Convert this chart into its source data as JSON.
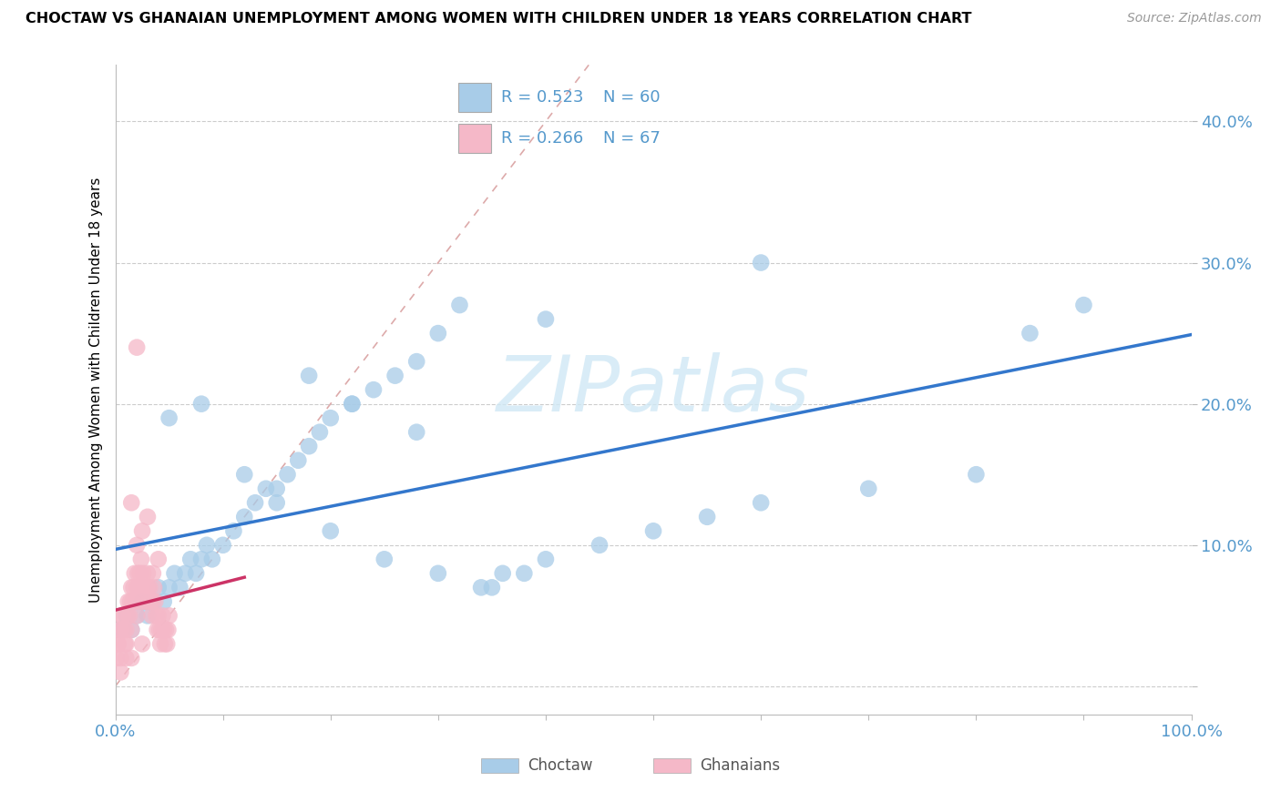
{
  "title": "CHOCTAW VS GHANAIAN UNEMPLOYMENT AMONG WOMEN WITH CHILDREN UNDER 18 YEARS CORRELATION CHART",
  "source": "Source: ZipAtlas.com",
  "ylabel": "Unemployment Among Women with Children Under 18 years",
  "xlim": [
    0,
    1.0
  ],
  "ylim": [
    -0.02,
    0.44
  ],
  "xticks": [
    0.0,
    0.1,
    0.2,
    0.3,
    0.4,
    0.5,
    0.6,
    0.7,
    0.8,
    0.9,
    1.0
  ],
  "yticks": [
    0.0,
    0.1,
    0.2,
    0.3,
    0.4
  ],
  "ytick_labels": [
    "",
    "10.0%",
    "20.0%",
    "30.0%",
    "40.0%"
  ],
  "xtick_labels": [
    "0.0%",
    "",
    "",
    "",
    "",
    "",
    "",
    "",
    "",
    "",
    "100.0%"
  ],
  "legend_blue_r": "0.523",
  "legend_blue_n": "60",
  "legend_pink_r": "0.266",
  "legend_pink_n": "67",
  "blue_color": "#a8cce8",
  "pink_color": "#f5b8c8",
  "blue_line_color": "#3377cc",
  "pink_line_color": "#cc3366",
  "ref_line_color": "#ddaaaa",
  "tick_color": "#5599cc",
  "watermark_color": "#d0e8f5",
  "background_color": "#ffffff",
  "choctaw_x": [
    0.005,
    0.01,
    0.015,
    0.02,
    0.025,
    0.03,
    0.035,
    0.04,
    0.045,
    0.05,
    0.055,
    0.06,
    0.065,
    0.07,
    0.075,
    0.08,
    0.085,
    0.09,
    0.1,
    0.11,
    0.12,
    0.13,
    0.14,
    0.15,
    0.16,
    0.17,
    0.18,
    0.19,
    0.2,
    0.22,
    0.24,
    0.26,
    0.28,
    0.3,
    0.32,
    0.34,
    0.36,
    0.38,
    0.4,
    0.45,
    0.5,
    0.55,
    0.6,
    0.7,
    0.8,
    0.85,
    0.9,
    0.05,
    0.08,
    0.12,
    0.15,
    0.2,
    0.25,
    0.3,
    0.35,
    0.18,
    0.22,
    0.28,
    0.4,
    0.6
  ],
  "choctaw_y": [
    0.04,
    0.05,
    0.04,
    0.05,
    0.06,
    0.05,
    0.06,
    0.07,
    0.06,
    0.07,
    0.08,
    0.07,
    0.08,
    0.09,
    0.08,
    0.09,
    0.1,
    0.09,
    0.1,
    0.11,
    0.12,
    0.13,
    0.14,
    0.14,
    0.15,
    0.16,
    0.17,
    0.18,
    0.19,
    0.2,
    0.21,
    0.22,
    0.23,
    0.25,
    0.27,
    0.07,
    0.08,
    0.08,
    0.09,
    0.1,
    0.11,
    0.12,
    0.13,
    0.14,
    0.15,
    0.25,
    0.27,
    0.19,
    0.2,
    0.15,
    0.13,
    0.11,
    0.09,
    0.08,
    0.07,
    0.22,
    0.2,
    0.18,
    0.26,
    0.3
  ],
  "ghanaian_x": [
    0.001,
    0.002,
    0.003,
    0.004,
    0.005,
    0.006,
    0.007,
    0.008,
    0.009,
    0.01,
    0.011,
    0.012,
    0.013,
    0.014,
    0.015,
    0.016,
    0.017,
    0.018,
    0.019,
    0.02,
    0.021,
    0.022,
    0.023,
    0.024,
    0.025,
    0.026,
    0.027,
    0.028,
    0.029,
    0.03,
    0.031,
    0.032,
    0.033,
    0.034,
    0.035,
    0.036,
    0.037,
    0.038,
    0.039,
    0.04,
    0.041,
    0.042,
    0.043,
    0.044,
    0.045,
    0.046,
    0.047,
    0.048,
    0.049,
    0.05,
    0.005,
    0.01,
    0.015,
    0.02,
    0.025,
    0.03,
    0.035,
    0.04,
    0.02,
    0.025,
    0.03,
    0.015,
    0.01,
    0.005,
    0.02,
    0.015,
    0.025
  ],
  "ghanaian_y": [
    0.02,
    0.03,
    0.03,
    0.04,
    0.04,
    0.05,
    0.05,
    0.04,
    0.03,
    0.04,
    0.05,
    0.06,
    0.05,
    0.06,
    0.07,
    0.06,
    0.07,
    0.08,
    0.06,
    0.07,
    0.08,
    0.07,
    0.08,
    0.09,
    0.07,
    0.08,
    0.07,
    0.06,
    0.07,
    0.08,
    0.06,
    0.07,
    0.06,
    0.05,
    0.06,
    0.07,
    0.06,
    0.05,
    0.04,
    0.05,
    0.04,
    0.03,
    0.04,
    0.05,
    0.04,
    0.03,
    0.04,
    0.03,
    0.04,
    0.05,
    0.02,
    0.03,
    0.04,
    0.05,
    0.06,
    0.07,
    0.08,
    0.09,
    0.1,
    0.11,
    0.12,
    0.13,
    0.02,
    0.01,
    0.24,
    0.02,
    0.03
  ]
}
